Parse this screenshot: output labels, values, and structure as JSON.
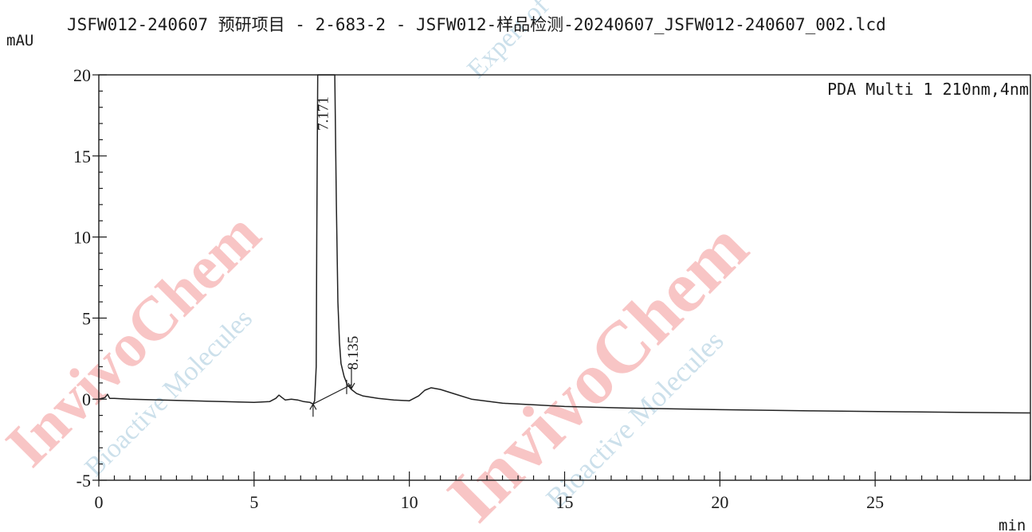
{
  "header": {
    "title": "JSFW012-240607 预研项目 - 2-683-2 - JSFW012-样品检测-20240607_JSFW012-240607_002.lcd"
  },
  "watermarks": [
    "InvivoChem",
    "Bioactive Molecules",
    "InvivoChem",
    "Bioactive Molecules",
    "Expert of"
  ],
  "chart_data": {
    "type": "line",
    "title": "",
    "xlabel": "min",
    "ylabel": "mAU",
    "xlim": [
      0,
      30
    ],
    "ylim": [
      -5,
      20
    ],
    "x_ticks": [
      0,
      5,
      10,
      15,
      20,
      25
    ],
    "y_ticks": [
      -5,
      0,
      5,
      10,
      15,
      20
    ],
    "x_tick_labels": [
      "0",
      "5",
      "10",
      "15",
      "20",
      "25"
    ],
    "y_tick_labels": [
      "-5",
      "0",
      "5",
      "10",
      "15",
      "20"
    ],
    "x_minor_step": 0.5,
    "y_minor_step": 1,
    "grid": false,
    "legend": {
      "text": "PDA Multi 1 210nm,4nm",
      "position": "top-right"
    },
    "series": [
      {
        "x": [
          0,
          0.2,
          0.28,
          0.35,
          0.5,
          1.0,
          2.0,
          3.0,
          4.0,
          5.0,
          5.5,
          5.7,
          5.8,
          5.9,
          6.0,
          6.2,
          6.4,
          6.6,
          6.8,
          6.9,
          6.95,
          7.0,
          7.02,
          7.05,
          7.1,
          7.171,
          7.25,
          7.4,
          7.6,
          7.65,
          7.7,
          7.75,
          7.8,
          7.9,
          8.0,
          8.135,
          8.3,
          8.5,
          9.0,
          9.5,
          10.0,
          10.3,
          10.5,
          10.7,
          11.0,
          11.5,
          12.0,
          13.0,
          14.0,
          15.0,
          17.0,
          20.0,
          23.0,
          26.0,
          28.0,
          30.0
        ],
        "y": [
          0.0,
          0.1,
          0.3,
          0.05,
          0.05,
          0.0,
          -0.05,
          -0.1,
          -0.15,
          -0.2,
          -0.15,
          0.05,
          0.25,
          0.1,
          -0.05,
          0.0,
          -0.05,
          -0.15,
          -0.2,
          -0.3,
          -0.1,
          2.0,
          10.0,
          20.0,
          20.0,
          20.0,
          20.0,
          20.0,
          20.0,
          12.0,
          6.0,
          3.5,
          2.2,
          1.4,
          0.9,
          0.6,
          0.35,
          0.2,
          0.05,
          -0.05,
          -0.1,
          0.2,
          0.55,
          0.7,
          0.6,
          0.3,
          0.0,
          -0.25,
          -0.35,
          -0.45,
          -0.55,
          -0.65,
          -0.72,
          -0.78,
          -0.82,
          -0.85
        ]
      }
    ],
    "baseline_segments": [
      {
        "x": [
          6.9,
          8.135
        ],
        "y": [
          -0.3,
          0.9
        ]
      }
    ],
    "peaks": [
      {
        "label": "7.171",
        "x": 7.171
      },
      {
        "label": "8.135",
        "x": 8.135
      }
    ]
  }
}
